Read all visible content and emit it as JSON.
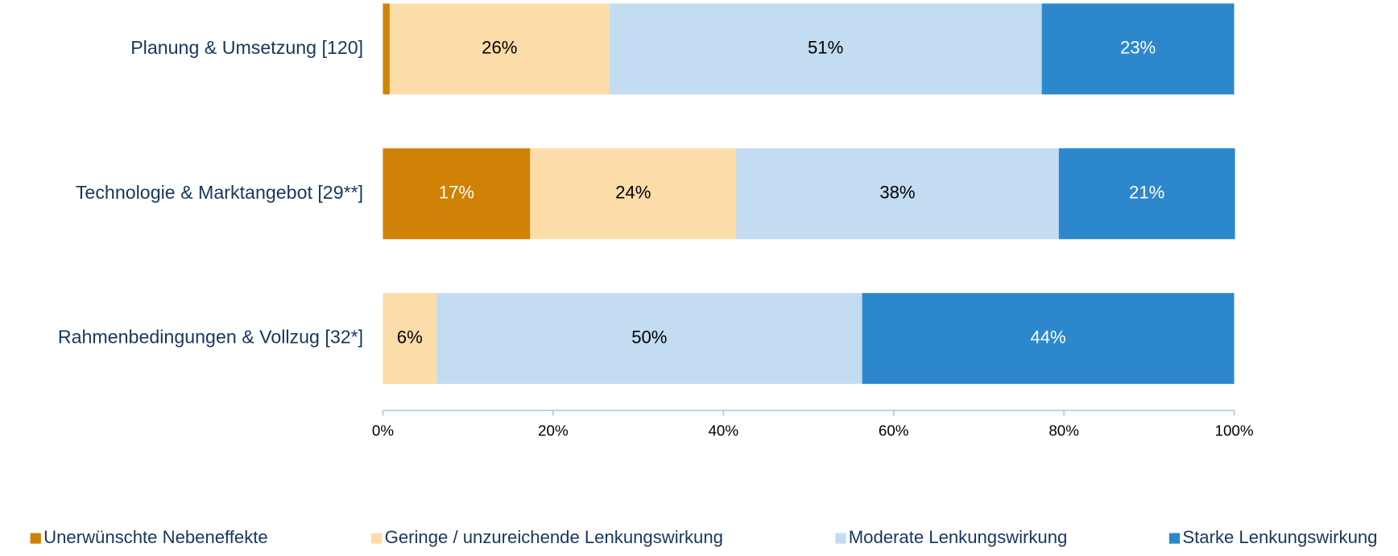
{
  "chart_data": {
    "type": "stacked_barh",
    "categories": [
      "Planung & Umsetzung [120]",
      "Technologie & Marktangebot [29**]",
      "Rahmenbedingungen & Vollzug [32*]"
    ],
    "series": [
      {
        "name": "Unerwünschte Nebeneffekte",
        "color": "#cf8206",
        "values": [
          0.8,
          17.3,
          0
        ],
        "value_labels": [
          null,
          "17%",
          null
        ]
      },
      {
        "name": "Geringe / unzureichende Lenkungswirkung",
        "color": "#fcdca8",
        "values": [
          25.8,
          24.2,
          6.3
        ],
        "value_labels": [
          "26%",
          "24%",
          "6%"
        ]
      },
      {
        "name": "Moderate Lenkungswirkung",
        "color": "#c3dcf2",
        "values": [
          50.8,
          37.9,
          50.0
        ],
        "value_labels": [
          "51%",
          "38%",
          "50%"
        ]
      },
      {
        "name": "Starke Lenkungswirkung",
        "color": "#2d87cc",
        "values": [
          22.6,
          20.7,
          43.7
        ],
        "value_labels": [
          "23%",
          "21%",
          "44%"
        ]
      }
    ],
    "xlim": [
      0,
      100
    ],
    "xticks": [
      {
        "value": 0,
        "label": "0%"
      },
      {
        "value": 20,
        "label": "20%"
      },
      {
        "value": 40,
        "label": "40%"
      },
      {
        "value": 60,
        "label": "60%"
      },
      {
        "value": 80,
        "label": "80%"
      },
      {
        "value": 100,
        "label": "100%"
      }
    ],
    "legend": "bottom"
  }
}
